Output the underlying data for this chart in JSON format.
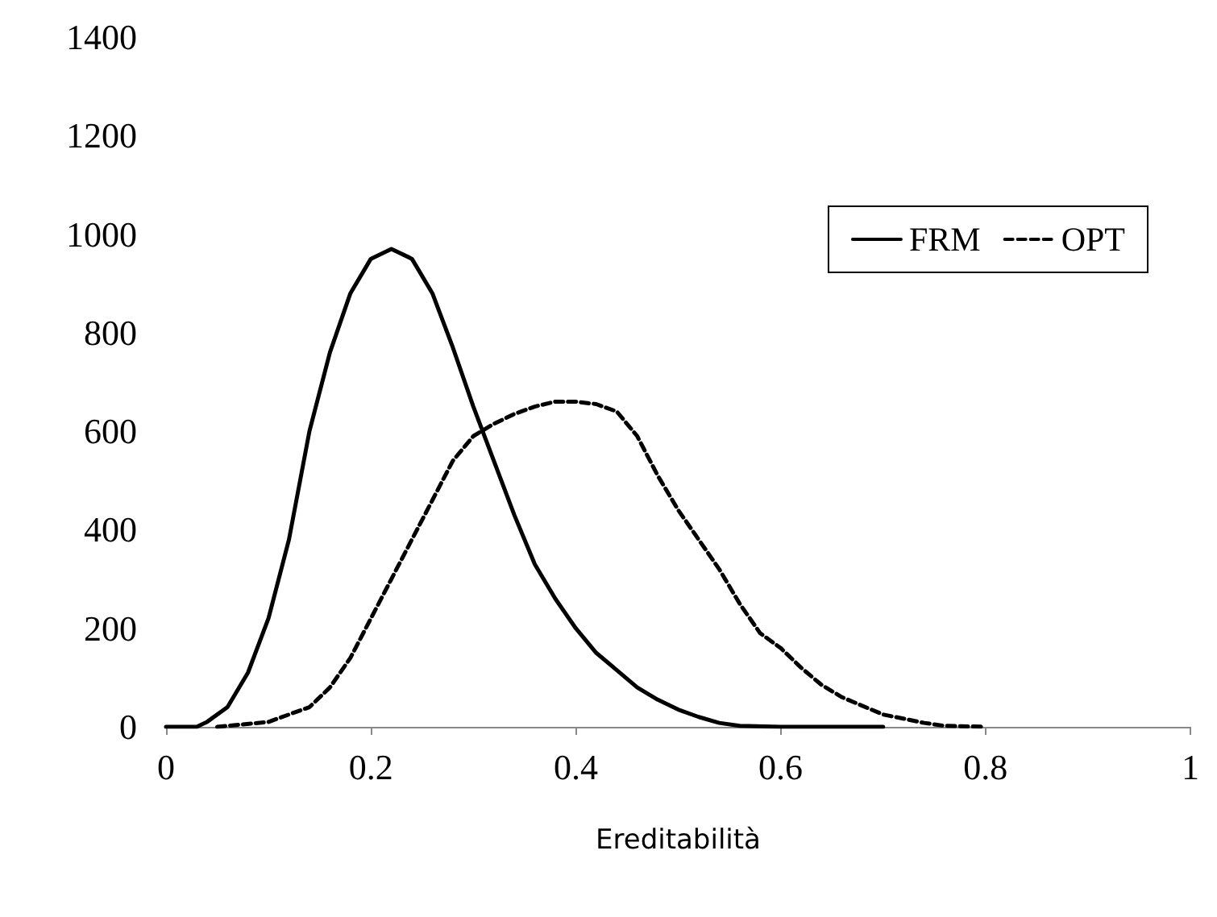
{
  "chart_data": {
    "type": "line",
    "xlabel": "Ereditabilità",
    "xlim": [
      0,
      1
    ],
    "xticks": [
      0,
      0.2,
      0.4,
      0.6,
      0.8,
      1
    ],
    "ylim": [
      0,
      1400
    ],
    "yticks": [
      0,
      200,
      400,
      600,
      800,
      1000,
      1200,
      1400
    ],
    "grid": false,
    "legend": "top right",
    "marker": "none",
    "series": [
      {
        "name": "FRM",
        "color": "#000000",
        "line_style": "solid",
        "x": [
          0,
          0.03,
          0.04,
          0.06,
          0.08,
          0.1,
          0.12,
          0.14,
          0.16,
          0.18,
          0.2,
          0.22,
          0.24,
          0.26,
          0.28,
          0.3,
          0.32,
          0.34,
          0.36,
          0.38,
          0.4,
          0.42,
          0.44,
          0.46,
          0.48,
          0.5,
          0.52,
          0.54,
          0.56,
          0.6,
          0.7
        ],
        "values": [
          0,
          0,
          10,
          40,
          110,
          220,
          380,
          600,
          760,
          880,
          950,
          970,
          950,
          880,
          770,
          650,
          540,
          430,
          330,
          260,
          200,
          150,
          115,
          80,
          55,
          35,
          20,
          8,
          2,
          0,
          0
        ]
      },
      {
        "name": "OPT",
        "color": "#000000",
        "line_style": "dashed",
        "x": [
          0.05,
          0.1,
          0.14,
          0.16,
          0.18,
          0.2,
          0.22,
          0.24,
          0.26,
          0.28,
          0.3,
          0.32,
          0.34,
          0.36,
          0.38,
          0.4,
          0.42,
          0.44,
          0.46,
          0.48,
          0.5,
          0.52,
          0.54,
          0.56,
          0.58,
          0.6,
          0.62,
          0.64,
          0.66,
          0.7,
          0.74,
          0.76,
          0.8
        ],
        "values": [
          0,
          10,
          40,
          80,
          140,
          220,
          300,
          380,
          460,
          540,
          590,
          615,
          635,
          650,
          660,
          660,
          655,
          640,
          590,
          510,
          440,
          380,
          320,
          250,
          190,
          160,
          120,
          85,
          60,
          25,
          8,
          2,
          0
        ]
      }
    ]
  }
}
